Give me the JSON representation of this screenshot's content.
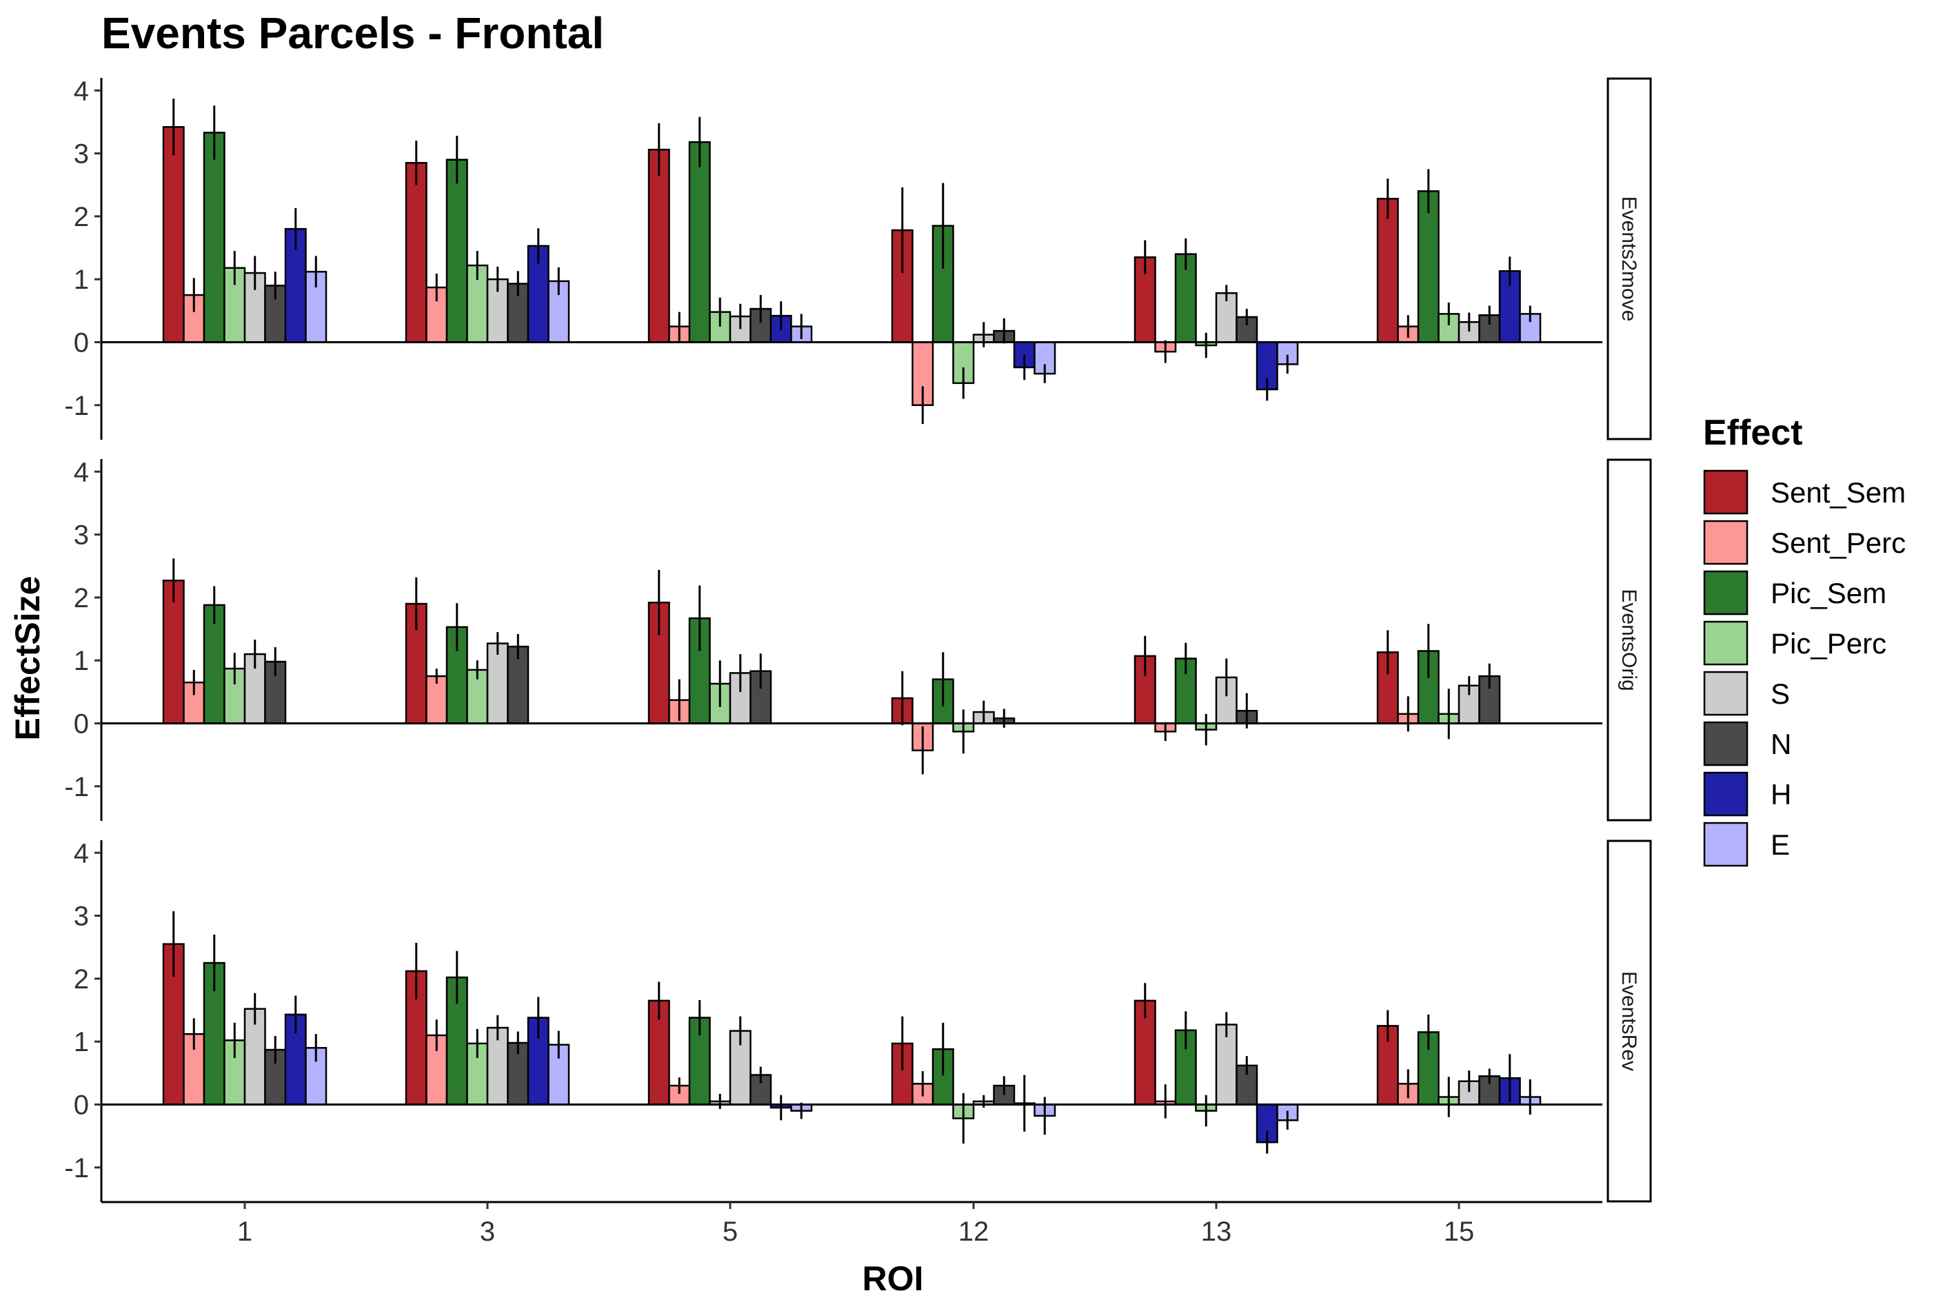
{
  "chart_data": {
    "type": "bar",
    "title": "Events Parcels - Frontal",
    "xlabel": "ROI",
    "ylabel": "EffectSize",
    "categories": [
      "1",
      "3",
      "5",
      "12",
      "13",
      "15"
    ],
    "yticks": [
      "-1",
      "0",
      "1",
      "2",
      "3",
      "4"
    ],
    "ylim": [
      -1.55,
      4.2
    ],
    "grid": false,
    "legend": {
      "title": "Effect",
      "position": "right"
    },
    "series_names": [
      "Sent_Sem",
      "Sent_Perc",
      "Pic_Sem",
      "Pic_Perc",
      "S",
      "N",
      "H",
      "E"
    ],
    "colors": [
      "#B2222A",
      "#FD9897",
      "#2C7A2E",
      "#9BD492",
      "#CCCCCC",
      "#4A4A4A",
      "#2020AA",
      "#B3B3FD"
    ],
    "panels": [
      {
        "facet": "Events2move",
        "values": [
          [
            3.42,
            0.75,
            3.33,
            1.18,
            1.1,
            0.9,
            1.8,
            1.12
          ],
          [
            2.85,
            0.87,
            2.9,
            1.22,
            1.0,
            0.93,
            1.53,
            0.97
          ],
          [
            3.06,
            0.25,
            3.18,
            0.48,
            0.41,
            0.53,
            0.42,
            0.25
          ],
          [
            1.78,
            -1.0,
            1.85,
            -0.65,
            0.12,
            0.18,
            -0.4,
            -0.5
          ],
          [
            1.35,
            -0.15,
            1.4,
            -0.05,
            0.78,
            0.4,
            -0.75,
            -0.35
          ],
          [
            2.28,
            0.25,
            2.4,
            0.45,
            0.32,
            0.43,
            1.13,
            0.45
          ]
        ],
        "errors": [
          [
            0.45,
            0.27,
            0.43,
            0.27,
            0.27,
            0.22,
            0.33,
            0.25
          ],
          [
            0.35,
            0.22,
            0.38,
            0.23,
            0.2,
            0.2,
            0.28,
            0.22
          ],
          [
            0.42,
            0.23,
            0.4,
            0.23,
            0.2,
            0.22,
            0.23,
            0.2
          ],
          [
            0.68,
            0.3,
            0.68,
            0.25,
            0.2,
            0.2,
            0.2,
            0.15
          ],
          [
            0.27,
            0.18,
            0.25,
            0.2,
            0.13,
            0.13,
            0.18,
            0.15
          ],
          [
            0.32,
            0.18,
            0.35,
            0.18,
            0.15,
            0.15,
            0.23,
            0.13
          ]
        ]
      },
      {
        "facet": "EventsOrig",
        "values": [
          [
            2.27,
            0.65,
            1.88,
            0.87,
            1.1,
            0.98,
            null,
            null
          ],
          [
            1.9,
            0.75,
            1.53,
            0.85,
            1.27,
            1.22,
            null,
            null
          ],
          [
            1.92,
            0.37,
            1.67,
            0.63,
            0.8,
            0.83,
            null,
            null
          ],
          [
            0.4,
            -0.43,
            0.7,
            -0.13,
            0.18,
            0.08,
            null,
            null
          ],
          [
            1.07,
            -0.13,
            1.03,
            -0.1,
            0.73,
            0.2,
            null,
            null
          ],
          [
            1.13,
            0.15,
            1.15,
            0.15,
            0.6,
            0.75,
            null,
            null
          ]
        ],
        "errors": [
          [
            0.35,
            0.2,
            0.3,
            0.25,
            0.23,
            0.23,
            null,
            null
          ],
          [
            0.42,
            0.12,
            0.38,
            0.15,
            0.18,
            0.2,
            null,
            null
          ],
          [
            0.52,
            0.33,
            0.52,
            0.37,
            0.3,
            0.28,
            null,
            null
          ],
          [
            0.43,
            0.38,
            0.43,
            0.35,
            0.18,
            0.15,
            null,
            null
          ],
          [
            0.32,
            0.15,
            0.25,
            0.25,
            0.3,
            0.28,
            null,
            null
          ],
          [
            0.35,
            0.28,
            0.43,
            0.4,
            0.15,
            0.2,
            null,
            null
          ]
        ]
      },
      {
        "facet": "EventsRev",
        "values": [
          [
            2.55,
            1.12,
            2.25,
            1.02,
            1.52,
            0.87,
            1.43,
            0.9
          ],
          [
            2.12,
            1.1,
            2.02,
            0.97,
            1.22,
            0.98,
            1.38,
            0.95
          ],
          [
            1.65,
            0.3,
            1.38,
            0.05,
            1.17,
            0.47,
            -0.05,
            -0.1
          ],
          [
            0.97,
            0.33,
            0.88,
            -0.22,
            0.05,
            0.3,
            0.02,
            -0.18
          ],
          [
            1.65,
            0.05,
            1.18,
            -0.1,
            1.27,
            0.62,
            -0.6,
            -0.25
          ],
          [
            1.25,
            0.33,
            1.15,
            0.12,
            0.37,
            0.45,
            0.42,
            0.12
          ]
        ],
        "errors": [
          [
            0.52,
            0.25,
            0.45,
            0.28,
            0.25,
            0.22,
            0.3,
            0.22
          ],
          [
            0.45,
            0.25,
            0.42,
            0.23,
            0.2,
            0.18,
            0.33,
            0.22
          ],
          [
            0.3,
            0.13,
            0.28,
            0.12,
            0.23,
            0.13,
            0.2,
            0.13
          ],
          [
            0.43,
            0.2,
            0.42,
            0.4,
            0.1,
            0.15,
            0.45,
            0.3
          ],
          [
            0.28,
            0.27,
            0.3,
            0.25,
            0.2,
            0.15,
            0.18,
            0.15
          ],
          [
            0.25,
            0.23,
            0.28,
            0.32,
            0.17,
            0.12,
            0.38,
            0.28
          ]
        ]
      }
    ]
  }
}
